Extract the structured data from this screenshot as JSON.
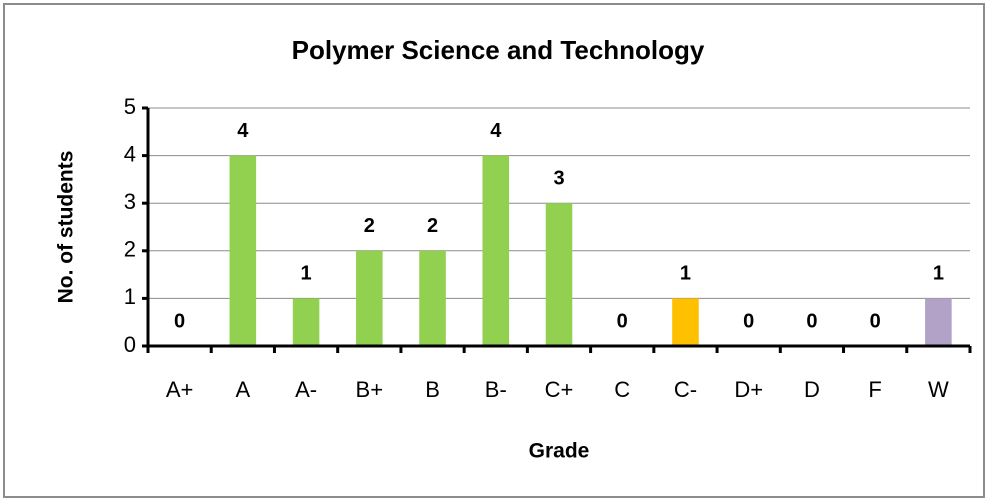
{
  "chart_data": {
    "type": "bar",
    "title": "Polymer Science and Technology",
    "x_label": "Grade",
    "y_label": "No. of students",
    "categories": [
      "A+",
      "A",
      "A-",
      "B+",
      "B",
      "B-",
      "C+",
      "C",
      "C-",
      "D+",
      "D",
      "F",
      "W"
    ],
    "values": [
      0,
      4,
      1,
      2,
      2,
      4,
      3,
      0,
      1,
      0,
      0,
      0,
      1
    ],
    "colors": [
      "#92d050",
      "#92d050",
      "#92d050",
      "#92d050",
      "#92d050",
      "#92d050",
      "#92d050",
      "#92d050",
      "#ffc000",
      "#92d050",
      "#92d050",
      "#92d050",
      "#b3a2c7"
    ],
    "ylim": [
      0,
      5
    ],
    "yticks": [
      0,
      1,
      2,
      3,
      4,
      5
    ],
    "grid": true
  }
}
